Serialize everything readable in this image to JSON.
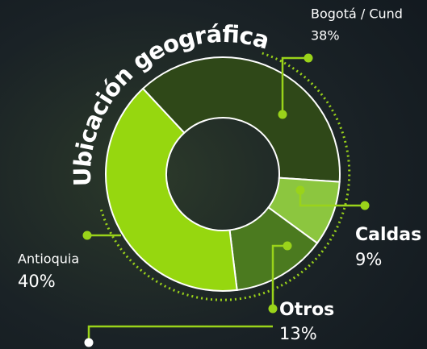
{
  "chart_data": {
    "type": "donut",
    "title": "Ubicación geográfica",
    "categories": [
      "Bogotá / Cund",
      "Caldas",
      "Otros",
      "Antioquia"
    ],
    "values": [
      38,
      9,
      13,
      40
    ],
    "value_labels": [
      "38%",
      "9%",
      "13%",
      "40%"
    ],
    "colors": [
      "#2f4818",
      "#8cc63f",
      "#4b7a1f",
      "#96d70f"
    ]
  }
}
